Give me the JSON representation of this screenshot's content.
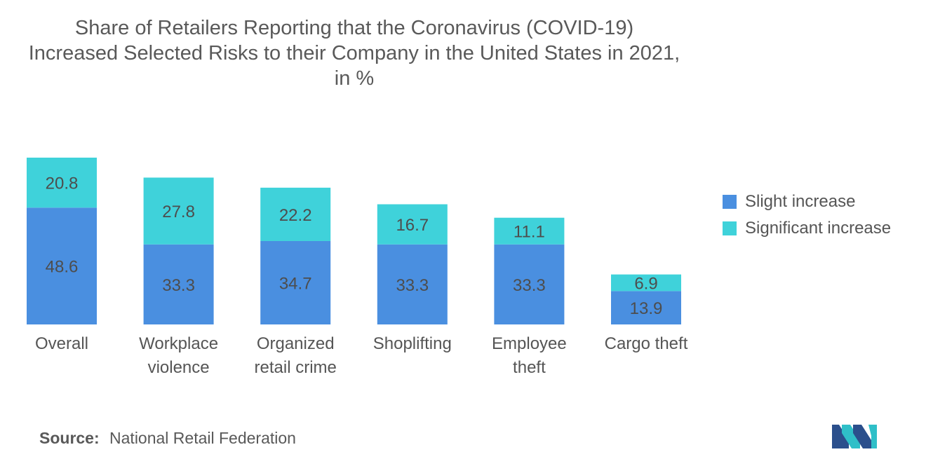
{
  "chart_data": {
    "type": "bar",
    "stacked": true,
    "title_lines": [
      "Share of Retailers Reporting that the Coronavirus (COVID-19)",
      "Increased Selected Risks to their Company in the United States in 2021,",
      "in %"
    ],
    "categories": [
      [
        "Overall"
      ],
      [
        "Workplace",
        "violence"
      ],
      [
        "Organized",
        "retail crime"
      ],
      [
        "Shoplifting"
      ],
      [
        "Employee",
        "theft"
      ],
      [
        "Cargo theft"
      ]
    ],
    "series": [
      {
        "name": "Slight increase",
        "color": "#4a8fe0",
        "values": [
          48.6,
          33.3,
          34.7,
          33.3,
          33.3,
          13.9
        ]
      },
      {
        "name": "Significant increase",
        "color": "#3fd2da",
        "values": [
          20.8,
          27.8,
          22.2,
          16.7,
          11.1,
          6.9
        ]
      }
    ],
    "ylim": [
      0,
      70
    ],
    "grid": false,
    "legend_position": "right"
  },
  "source": {
    "label": "Source:",
    "text": "National Retail Federation"
  },
  "logo": {
    "icon": "mordor-intelligence-logo-icon",
    "colors": [
      "#2b4f8c",
      "#2fbfc8"
    ]
  }
}
